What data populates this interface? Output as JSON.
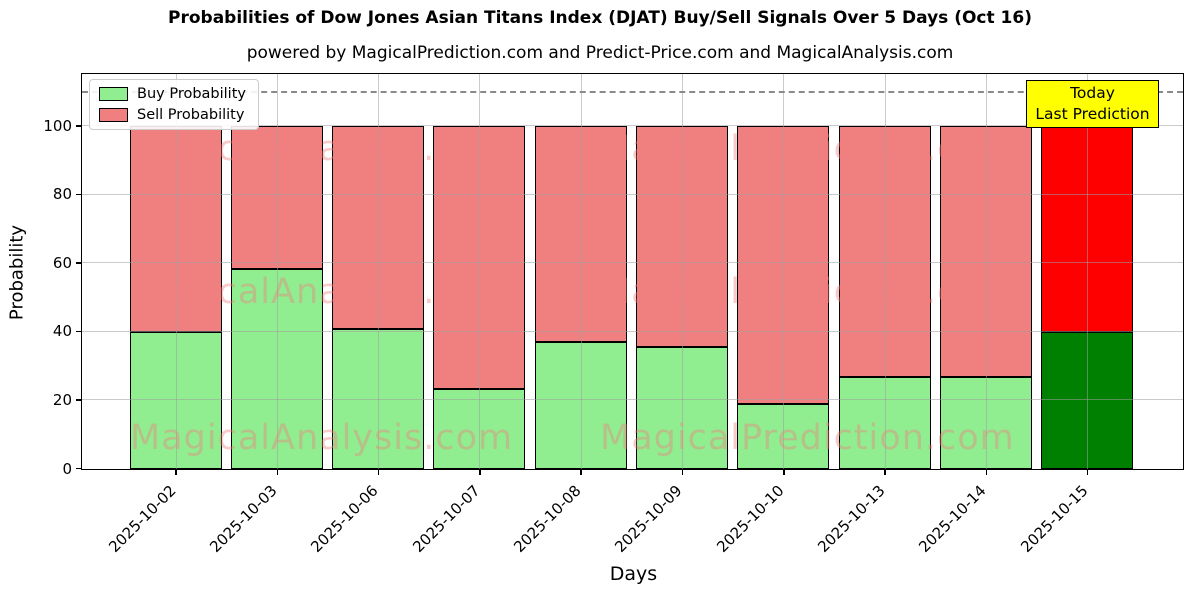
{
  "chart_data": {
    "type": "bar",
    "stacked": true,
    "title": "Probabilities of Dow Jones Asian Titans Index (DJAT) Buy/Sell Signals Over 5 Days (Oct 16)",
    "subtitle": "powered by MagicalPrediction.com and Predict-Price.com and MagicalAnalysis.com",
    "xlabel": "Days",
    "ylabel": "Probability",
    "categories": [
      "2025-10-02",
      "2025-10-03",
      "2025-10-06",
      "2025-10-07",
      "2025-10-08",
      "2025-10-09",
      "2025-10-10",
      "2025-10-13",
      "2025-10-14",
      "2025-10-15"
    ],
    "series": [
      {
        "name": "Buy Probability",
        "color": "#90ee90",
        "values": [
          40,
          58.5,
          41,
          23.5,
          37,
          35.5,
          19,
          27,
          27,
          40
        ]
      },
      {
        "name": "Sell Probability",
        "color": "#f08080",
        "values": [
          60,
          41.5,
          59,
          76.5,
          63,
          64.5,
          81,
          73,
          73,
          60
        ]
      }
    ],
    "today_bar": {
      "index": 9,
      "buy_color": "#008000",
      "sell_color": "#ff0000"
    },
    "yticks": [
      0,
      20,
      40,
      60,
      80,
      100
    ],
    "ylim": [
      0,
      115
    ],
    "grid": true,
    "legend_position": "upper left",
    "dashed_reference_y": 110,
    "annotation": {
      "lines": [
        "Today",
        "Last Prediction"
      ],
      "bg_color": "#ffff00"
    },
    "watermark_left": "MagicalAnalysis.com",
    "watermark_right": "MagicalPrediction.com"
  }
}
